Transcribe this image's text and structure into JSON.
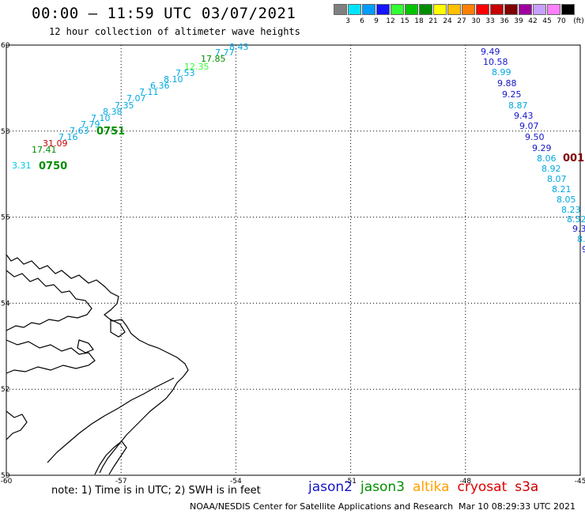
{
  "title": "00:00 – 11:59 UTC 03/07/2021",
  "subtitle": "12 hour collection of altimeter wave heights",
  "legend": {
    "unit": "(ft)",
    "bins": [
      {
        "label": "3",
        "color": "#808080"
      },
      {
        "label": "6",
        "color": "#00e5ff"
      },
      {
        "label": "9",
        "color": "#009dff"
      },
      {
        "label": "12",
        "color": "#1515ff"
      },
      {
        "label": "15",
        "color": "#33ff33"
      },
      {
        "label": "18",
        "color": "#00c400"
      },
      {
        "label": "21",
        "color": "#008e00"
      },
      {
        "label": "24",
        "color": "#ffff00"
      },
      {
        "label": "27",
        "color": "#ffc000"
      },
      {
        "label": "30",
        "color": "#ff8000"
      },
      {
        "label": "33",
        "color": "#ff0000"
      },
      {
        "label": "36",
        "color": "#c80000"
      },
      {
        "label": "39",
        "color": "#800000"
      },
      {
        "label": "42",
        "color": "#a000a0"
      },
      {
        "label": "45",
        "color": "#c8a0ff"
      },
      {
        "label": "70",
        "color": "#ff80ff"
      },
      {
        "label": "",
        "color": "#000000"
      }
    ]
  },
  "axes": {
    "lon_ticks": [
      "-60",
      "-57",
      "-54",
      "-51",
      "-48",
      "-45"
    ],
    "lat_ticks": [
      "50",
      "52",
      "54",
      "56",
      "58",
      "60"
    ],
    "lon_range": [
      -60,
      -45
    ],
    "lat_range": [
      50,
      60
    ]
  },
  "track_west": {
    "times": [
      {
        "label": "0750",
        "color": "#008e00"
      },
      {
        "label": "0751",
        "color": "#008e00"
      }
    ],
    "values": [
      {
        "text": "3.31",
        "color": "#00c8e0"
      },
      {
        "text": "17.41",
        "color": "#008e00"
      },
      {
        "text": "31.09",
        "color": "#c80000"
      },
      {
        "text": "7.16",
        "color": "#00a8e0"
      },
      {
        "text": "7.63",
        "color": "#00a8e0"
      },
      {
        "text": "7.79",
        "color": "#00a8e0"
      },
      {
        "text": "7.10",
        "color": "#00a8e0"
      },
      {
        "text": "8.38",
        "color": "#00a8e0"
      },
      {
        "text": "7.35",
        "color": "#00a8e0"
      },
      {
        "text": "7.07",
        "color": "#00a8e0"
      },
      {
        "text": "7.11",
        "color": "#00a8e0"
      },
      {
        "text": "6.36",
        "color": "#00a8e0"
      },
      {
        "text": "8.10",
        "color": "#00a8e0"
      },
      {
        "text": "7.53",
        "color": "#00a8e0"
      },
      {
        "text": "12.35",
        "color": "#33ff33"
      },
      {
        "text": "17.85",
        "color": "#008e00"
      },
      {
        "text": "7.77",
        "color": "#00a8e0"
      },
      {
        "text": "8.43",
        "color": "#00a8e0"
      }
    ]
  },
  "track_east": {
    "time": {
      "label": "001",
      "color": "#800000"
    },
    "values": [
      {
        "text": "9.49",
        "color": "#1515c8"
      },
      {
        "text": "10.58",
        "color": "#1515c8"
      },
      {
        "text": "8.99",
        "color": "#00a8e0"
      },
      {
        "text": "9.88",
        "color": "#1515c8"
      },
      {
        "text": "9.25",
        "color": "#1515c8"
      },
      {
        "text": "8.87",
        "color": "#00a8e0"
      },
      {
        "text": "9.43",
        "color": "#1515c8"
      },
      {
        "text": "9.07",
        "color": "#1515c8"
      },
      {
        "text": "9.50",
        "color": "#1515c8"
      },
      {
        "text": "9.29",
        "color": "#1515c8"
      },
      {
        "text": "8.06",
        "color": "#00a8e0"
      },
      {
        "text": "8.92",
        "color": "#00a8e0"
      },
      {
        "text": "8.07",
        "color": "#00a8e0"
      },
      {
        "text": "8.21",
        "color": "#00a8e0"
      },
      {
        "text": "8.05",
        "color": "#00a8e0"
      },
      {
        "text": "8.23",
        "color": "#00a8e0"
      },
      {
        "text": "8.52",
        "color": "#00a8e0"
      },
      {
        "text": "9.3",
        "color": "#1515c8"
      },
      {
        "text": "8.",
        "color": "#00a8e0"
      },
      {
        "text": "9",
        "color": "#1515c8"
      }
    ]
  },
  "note": "note:  1) Time is in UTC;  2) SWH is in feet",
  "satellites": [
    {
      "name": "jason2",
      "color": "#1515c8"
    },
    {
      "name": "jason3",
      "color": "#009000"
    },
    {
      "name": "altika",
      "color": "#ffa000"
    },
    {
      "name": "cryosat",
      "color": "#e00000"
    },
    {
      "name": "s3a",
      "color": "#c80000"
    }
  ],
  "credit": "NOAA/NESDIS Center for Satellite Applications and Research",
  "timestamp": "Mar 10 08:29:33 UTC 2021"
}
